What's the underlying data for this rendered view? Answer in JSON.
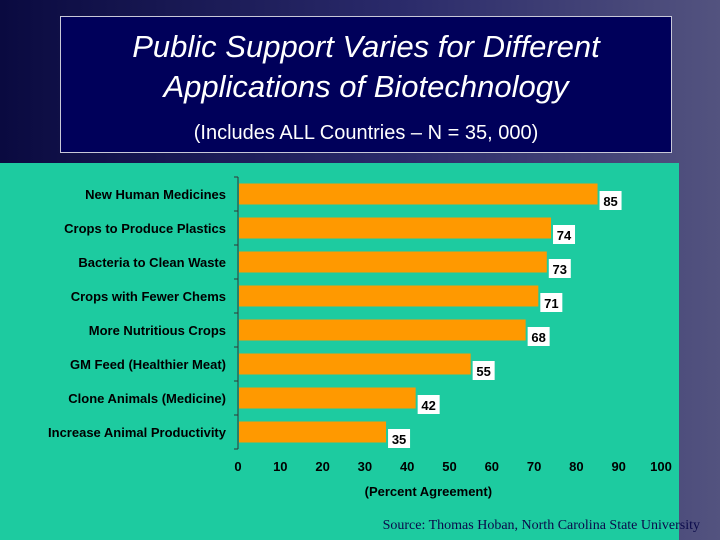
{
  "title": "Public Support Varies for Different Applications of Biotechnology",
  "subtitle": "(Includes ALL Countries – N = 35, 000)",
  "source": "Source: Thomas Hoban, North Carolina State University",
  "colors": {
    "bar": "#ff9900",
    "panel": "#1dcba0",
    "title_box": "#00005a"
  },
  "chart_data": {
    "type": "bar",
    "orientation": "horizontal",
    "title": "Public Support Varies for Different Applications of Biotechnology",
    "subtitle": "(Includes ALL Countries – N = 35, 000)",
    "categories": [
      "New Human Medicines",
      "Crops to Produce Plastics",
      "Bacteria to Clean Waste",
      "Crops with Fewer Chems",
      "More Nutritious Crops",
      "GM Feed (Healthier Meat)",
      "Clone Animals (Medicine)",
      "Increase Animal Productivity"
    ],
    "values": [
      85,
      74,
      73,
      71,
      68,
      55,
      42,
      35
    ],
    "xlabel": "(Percent Agreement)",
    "ylabel": "",
    "xlim": [
      0,
      100
    ],
    "xticks": [
      "0",
      "10",
      "20",
      "30",
      "40",
      "50",
      "60",
      "70",
      "80",
      "90",
      "100"
    ],
    "grid": false,
    "legend": "none"
  }
}
